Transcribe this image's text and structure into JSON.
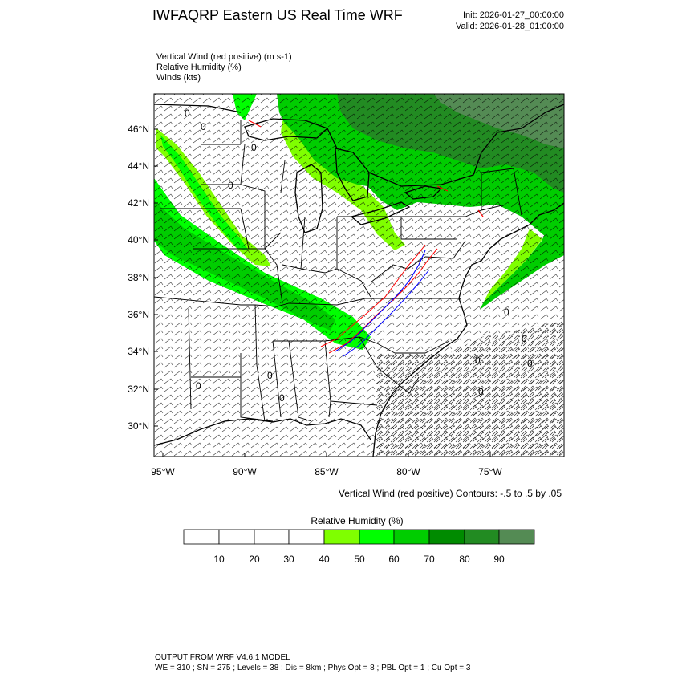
{
  "header": {
    "title": "IWFAQRP Eastern US Real Time WRF",
    "init": "Init: 2026-01-27_00:00:00",
    "valid": "Valid: 2026-01-28_01:00:00"
  },
  "fields": [
    "Vertical Wind (red positive)   (m s-1)",
    "Relative Humidity   (%)",
    "Winds   (kts)"
  ],
  "map": {
    "lat_labels": [
      "46°N",
      "44°N",
      "42°N",
      "40°N",
      "38°N",
      "36°N",
      "34°N",
      "32°N",
      "30°N"
    ],
    "lon_labels": [
      "95°W",
      "90°W",
      "85°W",
      "80°W",
      "75°W"
    ],
    "contour_zero_label": "0",
    "colors": {
      "coast": "#000000",
      "rh_40": "#7fff00",
      "rh_50": "#00ff00",
      "rh_60": "#00cd00",
      "rh_70": "#008b00",
      "rh_80": "#228b22",
      "rh_90": "#548b54",
      "vw_positive": "#ff0000",
      "vw_negative": "#0000ff"
    }
  },
  "contour_note": "Vertical Wind (red positive) Contours: -.5 to .5 by .05",
  "colorbar": {
    "title": "Relative Humidity   (%)",
    "tick_labels": [
      "10",
      "20",
      "30",
      "40",
      "50",
      "60",
      "70",
      "80",
      "90"
    ],
    "colors": [
      "#ffffff",
      "#ffffff",
      "#ffffff",
      "#ffffff",
      "#7fff00",
      "#00ff00",
      "#00cd00",
      "#008b00",
      "#228b22",
      "#548b54"
    ]
  },
  "footer": {
    "line1": "OUTPUT FROM WRF V4.6.1 MODEL",
    "line2": "WE = 310 ; SN = 275 ; Levels = 38 ; Dis = 8km ; Phys Opt = 8 ; PBL Opt = 1 ; Cu Opt = 3"
  }
}
